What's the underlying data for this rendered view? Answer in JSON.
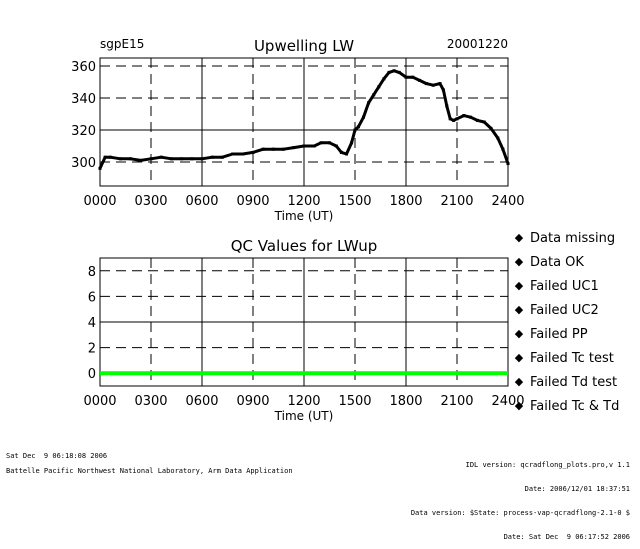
{
  "chart_data": [
    {
      "type": "line",
      "title": "Upwelling LW",
      "site_label": "sgpE15",
      "date_label": "20001220",
      "xlabel": "Time (UT)",
      "ylabel": "",
      "xlim": [
        0,
        2400
      ],
      "ylim": [
        285,
        365
      ],
      "xticks": [
        "0000",
        "0300",
        "0600",
        "0900",
        "1200",
        "1500",
        "1800",
        "2100",
        "2400"
      ],
      "xtick_values": [
        0,
        300,
        600,
        900,
        1200,
        1500,
        1800,
        2100,
        2400
      ],
      "yticks": [
        "300",
        "320",
        "340",
        "360"
      ],
      "ytick_values": [
        300,
        320,
        340,
        360
      ],
      "grid": true,
      "series": [
        {
          "color": "#000000",
          "x": [
            0,
            30,
            60,
            120,
            180,
            240,
            300,
            360,
            420,
            480,
            540,
            600,
            660,
            720,
            780,
            840,
            900,
            960,
            1020,
            1080,
            1140,
            1200,
            1260,
            1300,
            1350,
            1390,
            1420,
            1450,
            1480,
            1500,
            1520,
            1550,
            1580,
            1610,
            1640,
            1670,
            1700,
            1730,
            1760,
            1800,
            1840,
            1880,
            1920,
            1960,
            2000,
            2020,
            2040,
            2060,
            2080,
            2100,
            2140,
            2180,
            2220,
            2260,
            2300,
            2340,
            2370,
            2400
          ],
          "y": [
            296,
            303,
            303,
            302,
            302,
            301,
            302,
            303,
            302,
            302,
            302,
            302,
            303,
            303,
            305,
            305,
            306,
            308,
            308,
            308,
            309,
            310,
            310,
            312,
            312,
            310,
            306,
            305,
            312,
            320,
            322,
            328,
            337,
            342,
            347,
            352,
            356,
            357,
            356,
            353,
            353,
            351,
            349,
            348,
            349,
            345,
            335,
            327,
            326,
            327,
            329,
            328,
            326,
            325,
            321,
            315,
            308,
            299
          ]
        }
      ]
    },
    {
      "type": "line",
      "title": "QC Values for LWup",
      "xlabel": "Time (UT)",
      "ylabel": "",
      "xlim": [
        0,
        2400
      ],
      "ylim": [
        -1,
        9
      ],
      "xticks": [
        "0000",
        "0300",
        "0600",
        "0900",
        "1200",
        "1500",
        "1800",
        "2100",
        "2400"
      ],
      "xtick_values": [
        0,
        300,
        600,
        900,
        1200,
        1500,
        1800,
        2100,
        2400
      ],
      "yticks": [
        "0",
        "2",
        "4",
        "6",
        "8"
      ],
      "ytick_values": [
        0,
        2,
        4,
        6,
        8
      ],
      "grid": true,
      "series": [
        {
          "color": "#00ff00",
          "x": [
            0,
            2400
          ],
          "y": [
            0,
            0
          ]
        }
      ],
      "legend": [
        {
          "label": "Data missing",
          "color": "#000000"
        },
        {
          "label": "Data OK",
          "color": "#00ff00"
        },
        {
          "label": "Failed UC1",
          "color": "#ffff00"
        },
        {
          "label": "Failed UC2",
          "color": "#ff8000"
        },
        {
          "label": "Failed PP",
          "color": "#ff0000"
        },
        {
          "label": "Failed Tc test",
          "color": "#ff00ff"
        },
        {
          "label": "Failed Td test",
          "color": "#00ffff"
        },
        {
          "label": "Failed Tc & Td",
          "color": "#0000ff"
        }
      ]
    }
  ],
  "footer": {
    "timestamp": "Sat Dec  9 06:18:08 2006",
    "credit": "Battelle Pacific Northwest National Laboratory, Arm Data Application",
    "right_lines": [
      "IDL version: qcradflong_plots.pro,v 1.1",
      "Date: 2006/12/01 18:37:51",
      "Data version: $State: process-vap-qcradflong-2.1-0 $",
      "Date: Sat Dec  9 06:17:52 2006"
    ]
  }
}
